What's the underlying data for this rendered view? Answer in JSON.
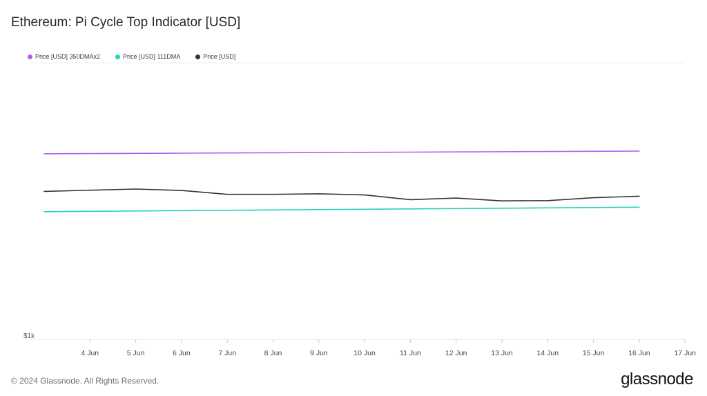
{
  "header": {
    "title": "Ethereum: Pi Cycle Top Indicator [USD]"
  },
  "footer": {
    "copyright": "© 2024 Glassnode. All Rights Reserved.",
    "brand": "glassnode"
  },
  "colors": {
    "series_350dma": "#b65cf0",
    "series_111dma": "#22d3b8",
    "series_price": "#333338",
    "grid": "#efeff2"
  },
  "chart_data": {
    "type": "line",
    "title": "Ethereum: Pi Cycle Top Indicator [USD]",
    "xlabel": "",
    "ylabel": "",
    "y_tick_labels": [
      "$1k"
    ],
    "y_scale": "log",
    "ylim": [
      1000,
      12000
    ],
    "x": [
      "4 Jun",
      "5 Jun",
      "6 Jun",
      "7 Jun",
      "8 Jun",
      "9 Jun",
      "10 Jun",
      "11 Jun",
      "12 Jun",
      "13 Jun",
      "14 Jun",
      "15 Jun",
      "16 Jun",
      "17 Jun"
    ],
    "legend_position": "top-left",
    "grid": false,
    "series": [
      {
        "name": "Price [USD] 350DMAx2",
        "color": "#b65cf0",
        "points": [
          [
            "3 Jun",
            5300
          ],
          [
            "4 Jun",
            5310
          ],
          [
            "5 Jun",
            5320
          ],
          [
            "6 Jun",
            5330
          ],
          [
            "7 Jun",
            5340
          ],
          [
            "8 Jun",
            5350
          ],
          [
            "9 Jun",
            5360
          ],
          [
            "10 Jun",
            5370
          ],
          [
            "11 Jun",
            5380
          ],
          [
            "12 Jun",
            5390
          ],
          [
            "13 Jun",
            5400
          ],
          [
            "14 Jun",
            5410
          ],
          [
            "15 Jun",
            5420
          ],
          [
            "16 Jun",
            5430
          ]
        ]
      },
      {
        "name": "Price [USD] 111DMA",
        "color": "#22d3b8",
        "points": [
          [
            "3 Jun",
            3150
          ],
          [
            "4 Jun",
            3160
          ],
          [
            "5 Jun",
            3170
          ],
          [
            "6 Jun",
            3180
          ],
          [
            "7 Jun",
            3190
          ],
          [
            "8 Jun",
            3200
          ],
          [
            "9 Jun",
            3210
          ],
          [
            "10 Jun",
            3220
          ],
          [
            "11 Jun",
            3230
          ],
          [
            "12 Jun",
            3240
          ],
          [
            "13 Jun",
            3250
          ],
          [
            "14 Jun",
            3260
          ],
          [
            "15 Jun",
            3270
          ],
          [
            "16 Jun",
            3280
          ]
        ]
      },
      {
        "name": "Price [USD]",
        "color": "#333338",
        "points": [
          [
            "3 Jun",
            3780
          ],
          [
            "5 Jun",
            3860
          ],
          [
            "6 Jun",
            3810
          ],
          [
            "7 Jun",
            3680
          ],
          [
            "8 Jun",
            3680
          ],
          [
            "9 Jun",
            3700
          ],
          [
            "10 Jun",
            3660
          ],
          [
            "11 Jun",
            3510
          ],
          [
            "12 Jun",
            3560
          ],
          [
            "13 Jun",
            3470
          ],
          [
            "14 Jun",
            3480
          ],
          [
            "15 Jun",
            3570
          ],
          [
            "16 Jun",
            3620
          ]
        ]
      }
    ]
  }
}
